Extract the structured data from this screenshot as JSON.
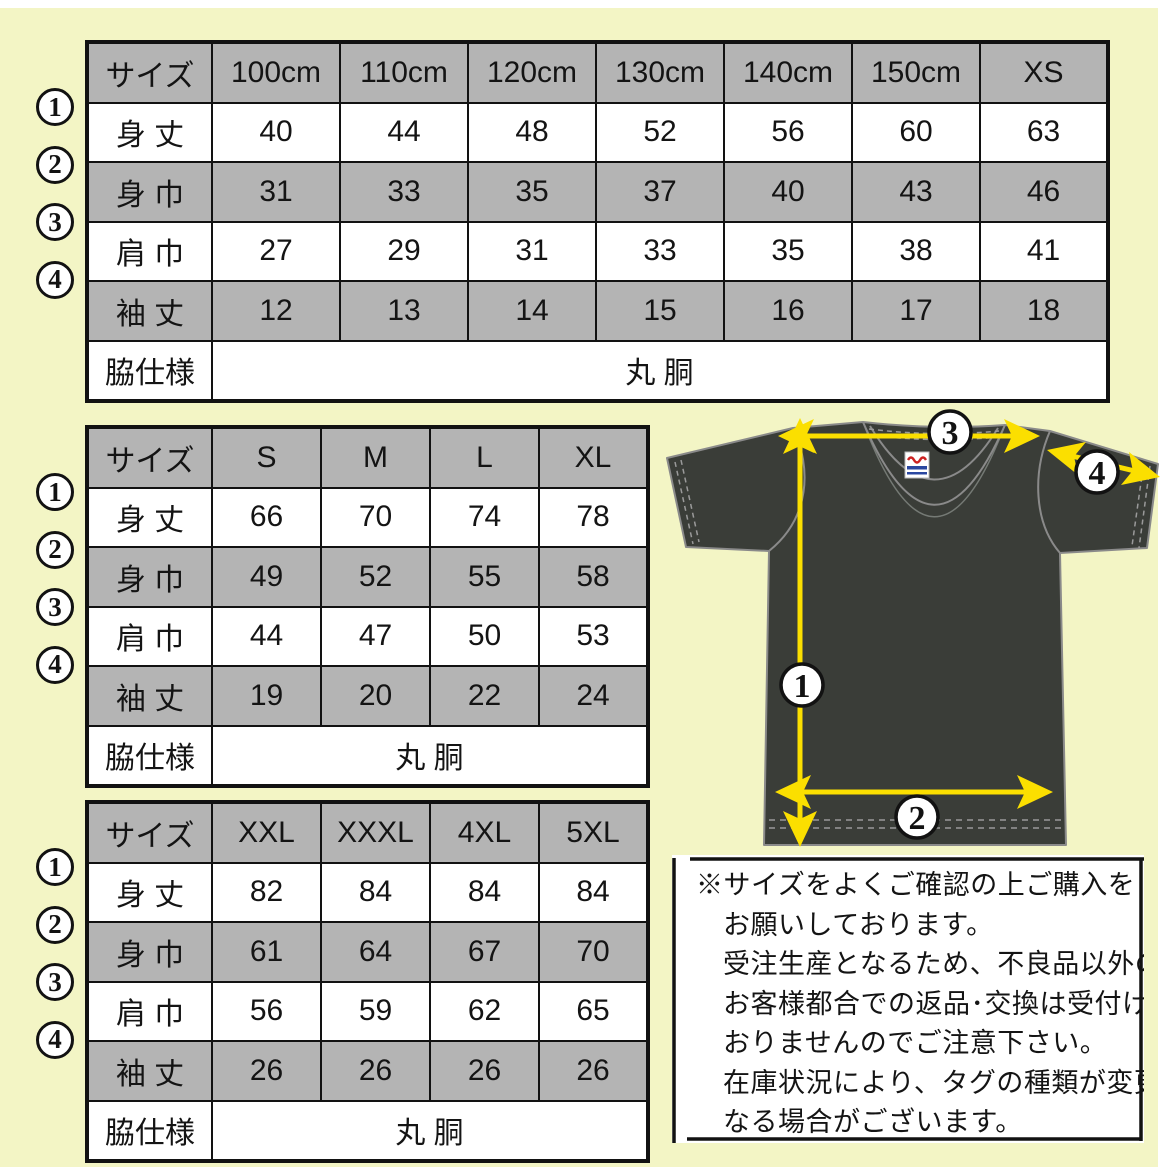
{
  "page": {
    "background_color": "#f3f5c5",
    "table_gray": "#b4b4b4",
    "border_color": "#121212"
  },
  "tables": [
    {
      "name": "kids-sizes",
      "header": [
        "サイズ",
        "100cm",
        "110cm",
        "120cm",
        "130cm",
        "140cm",
        "150cm",
        "XS"
      ],
      "rows": [
        {
          "marker": "1",
          "label": "身 丈",
          "values": [
            40,
            44,
            48,
            52,
            56,
            60,
            63
          ]
        },
        {
          "marker": "2",
          "label": "身 巾",
          "values": [
            31,
            33,
            35,
            37,
            40,
            43,
            46
          ]
        },
        {
          "marker": "3",
          "label": "肩 巾",
          "values": [
            27,
            29,
            31,
            33,
            35,
            38,
            41
          ]
        },
        {
          "marker": "4",
          "label": "袖 丈",
          "values": [
            12,
            13,
            14,
            15,
            16,
            17,
            18
          ]
        }
      ],
      "footer_label": "脇仕様",
      "footer_value": "丸 胴"
    },
    {
      "name": "adult-sizes",
      "header": [
        "サイズ",
        "S",
        "M",
        "L",
        "XL"
      ],
      "rows": [
        {
          "marker": "1",
          "label": "身 丈",
          "values": [
            66,
            70,
            74,
            78
          ]
        },
        {
          "marker": "2",
          "label": "身 巾",
          "values": [
            49,
            52,
            55,
            58
          ]
        },
        {
          "marker": "3",
          "label": "肩 巾",
          "values": [
            44,
            47,
            50,
            53
          ]
        },
        {
          "marker": "4",
          "label": "袖 丈",
          "values": [
            19,
            20,
            22,
            24
          ]
        }
      ],
      "footer_label": "脇仕様",
      "footer_value": "丸 胴"
    },
    {
      "name": "large-sizes",
      "header": [
        "サイズ",
        "XXL",
        "XXXL",
        "4XL",
        "5XL"
      ],
      "rows": [
        {
          "marker": "1",
          "label": "身 丈",
          "values": [
            82,
            84,
            84,
            84
          ]
        },
        {
          "marker": "2",
          "label": "身 巾",
          "values": [
            61,
            64,
            67,
            70
          ]
        },
        {
          "marker": "3",
          "label": "肩 巾",
          "values": [
            56,
            59,
            62,
            65
          ]
        },
        {
          "marker": "4",
          "label": "袖 丈",
          "values": [
            26,
            26,
            26,
            26
          ]
        }
      ],
      "footer_label": "脇仕様",
      "footer_value": "丸 胴"
    }
  ],
  "diagram": {
    "shirt_color": "#3a3d38",
    "outline_color": "#8a8a8a",
    "arrow_color": "#fbdf00",
    "markers": {
      "m1": "1",
      "m2": "2",
      "m3": "3",
      "m4": "4"
    }
  },
  "note": {
    "lines": [
      "※サイズをよくご確認の上ご購入を",
      "お願いしております。",
      "受注生産となるため、不良品以外の",
      "お客様都合での返品･交換は受付けて",
      "おりませんのでご注意下さい。",
      "在庫状況により、タグの種類が変更に",
      "なる場合がございます。"
    ]
  }
}
